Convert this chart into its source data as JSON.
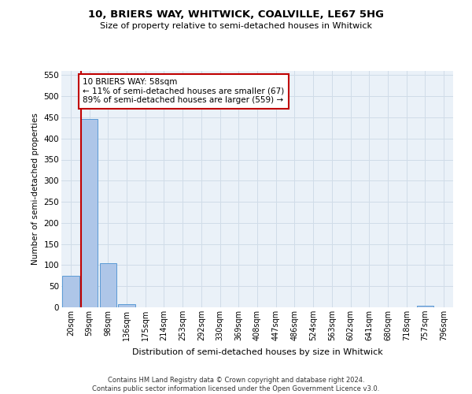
{
  "title": "10, BRIERS WAY, WHITWICK, COALVILLE, LE67 5HG",
  "subtitle": "Size of property relative to semi-detached houses in Whitwick",
  "xlabel": "Distribution of semi-detached houses by size in Whitwick",
  "ylabel": "Number of semi-detached properties",
  "footer_line1": "Contains HM Land Registry data © Crown copyright and database right 2024.",
  "footer_line2": "Contains public sector information licensed under the Open Government Licence v3.0.",
  "bin_labels": [
    "20sqm",
    "59sqm",
    "98sqm",
    "136sqm",
    "175sqm",
    "214sqm",
    "253sqm",
    "292sqm",
    "330sqm",
    "369sqm",
    "408sqm",
    "447sqm",
    "486sqm",
    "524sqm",
    "563sqm",
    "602sqm",
    "641sqm",
    "680sqm",
    "718sqm",
    "757sqm",
    "796sqm"
  ],
  "bar_values": [
    75,
    447,
    105,
    8,
    0,
    0,
    0,
    0,
    0,
    0,
    0,
    0,
    0,
    0,
    0,
    0,
    0,
    0,
    0,
    3,
    0
  ],
  "bar_color": "#aec6e8",
  "bar_edge_color": "#5b9bd5",
  "highlight_color": "#c00000",
  "annotation_title": "10 BRIERS WAY: 58sqm",
  "annotation_line1": "← 11% of semi-detached houses are smaller (67)",
  "annotation_line2": "89% of semi-detached houses are larger (559) →",
  "annotation_box_color": "#ffffff",
  "annotation_border_color": "#c00000",
  "ylim": [
    0,
    560
  ],
  "yticks": [
    0,
    50,
    100,
    150,
    200,
    250,
    300,
    350,
    400,
    450,
    500,
    550
  ],
  "grid_color": "#d0dce8",
  "bg_color": "#eaf1f8"
}
